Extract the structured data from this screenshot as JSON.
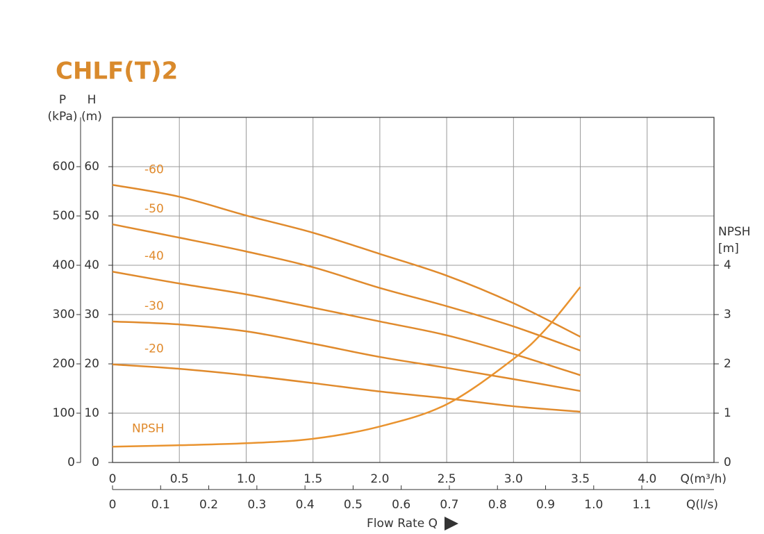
{
  "chart_data": {
    "type": "line",
    "title": "CHLF(T)2",
    "p_label": "P",
    "p_unit": "(kPa)",
    "y_label": "H",
    "y_unit": "(m)",
    "y2_label": "NPSH",
    "y2_unit": "[m]",
    "x_label": "Q(m³/h)",
    "x2_label": "Q(l/s)",
    "flow_label": "Flow Rate Q",
    "xlim": [
      0,
      4.5
    ],
    "xticks": [
      0,
      {
        "value": 0.5,
        "label": "0.5"
      },
      {
        "value": 1,
        "label": "1.0"
      },
      {
        "value": 1.5,
        "label": "1.5"
      },
      {
        "value": 2,
        "label": "2.0"
      },
      {
        "value": 2.5,
        "label": "2.5"
      },
      {
        "value": 3,
        "label": "3.0"
      },
      {
        "value": 3.5,
        "label": "3.5"
      },
      {
        "value": 4,
        "label": "4.0"
      }
    ],
    "x2lim": [
      0,
      1.25
    ],
    "x2ticks": [
      0,
      0.1,
      0.2,
      0.3,
      0.4,
      0.5,
      0.6,
      0.7,
      0.8,
      0.9,
      {
        "value": 1,
        "label": "1.0"
      },
      1.1
    ],
    "ylim": [
      0,
      70
    ],
    "yticks": [
      0,
      10,
      20,
      30,
      40,
      50,
      60
    ],
    "plim": [
      0,
      700
    ],
    "pticks": [
      0,
      100,
      200,
      300,
      400,
      500,
      600
    ],
    "y2lim": [
      0,
      7
    ],
    "y2ticks": [
      0,
      1,
      2,
      3,
      4
    ],
    "grid": true,
    "x": [
      0,
      0.5,
      1,
      1.5,
      2,
      2.5,
      3,
      3.5
    ],
    "series": [
      {
        "name": "-60",
        "color": "#e08a2c",
        "values": [
          56.3,
          53.9,
          50.1,
          46.6,
          42.3,
          37.9,
          32.3,
          25.5
        ]
      },
      {
        "name": "-50",
        "color": "#e08a2c",
        "values": [
          48.3,
          45.6,
          42.8,
          39.6,
          35.4,
          31.7,
          27.6,
          22.7
        ]
      },
      {
        "name": "-40",
        "color": "#e08a2c",
        "values": [
          38.7,
          36.3,
          34.1,
          31.4,
          28.6,
          25.8,
          22.0,
          17.7
        ]
      },
      {
        "name": "-30",
        "color": "#e08a2c",
        "values": [
          28.6,
          28.0,
          26.6,
          24.1,
          21.4,
          19.2,
          16.9,
          14.5
        ]
      },
      {
        "name": "-20",
        "color": "#e08a2c",
        "values": [
          19.9,
          19.0,
          17.7,
          16.1,
          14.4,
          13.0,
          11.4,
          10.3
        ]
      },
      {
        "name": "NPSH",
        "color": "#e9932f",
        "axis": "y2",
        "x": [
          0,
          0.5,
          1,
          1.5,
          2,
          2.5,
          3,
          3.25,
          3.5
        ],
        "values": [
          0.32,
          0.35,
          0.39,
          0.48,
          0.73,
          1.18,
          2.1,
          2.73,
          3.56
        ]
      }
    ]
  }
}
